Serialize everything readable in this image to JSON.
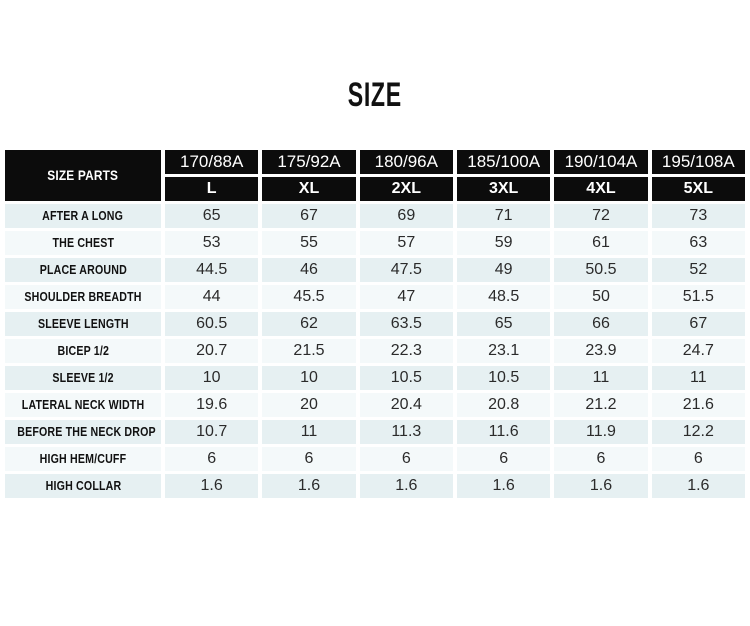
{
  "title": "SIZE",
  "chart_data": {
    "type": "table",
    "title": "SIZE",
    "corner_header": "SIZE PARTS",
    "column_groups": [
      "170/88A",
      "175/92A",
      "180/96A",
      "185/100A",
      "190/104A",
      "195/108A"
    ],
    "column_sizes": [
      "L",
      "XL",
      "2XL",
      "3XL",
      "4XL",
      "5XL"
    ],
    "rows": [
      {
        "label": "AFTER A LONG",
        "values": [
          "65",
          "67",
          "69",
          "71",
          "72",
          "73"
        ]
      },
      {
        "label": "THE CHEST",
        "values": [
          "53",
          "55",
          "57",
          "59",
          "61",
          "63"
        ]
      },
      {
        "label": "PLACE AROUND",
        "values": [
          "44.5",
          "46",
          "47.5",
          "49",
          "50.5",
          "52"
        ]
      },
      {
        "label": "SHOULDER BREADTH",
        "values": [
          "44",
          "45.5",
          "47",
          "48.5",
          "50",
          "51.5"
        ]
      },
      {
        "label": "SLEEVE LENGTH",
        "values": [
          "60.5",
          "62",
          "63.5",
          "65",
          "66",
          "67"
        ]
      },
      {
        "label": "BICEP 1/2",
        "values": [
          "20.7",
          "21.5",
          "22.3",
          "23.1",
          "23.9",
          "24.7"
        ]
      },
      {
        "label": "SLEEVE 1/2",
        "values": [
          "10",
          "10",
          "10.5",
          "10.5",
          "11",
          "11"
        ]
      },
      {
        "label": "LATERAL NECK WIDTH",
        "values": [
          "19.6",
          "20",
          "20.4",
          "20.8",
          "21.2",
          "21.6"
        ]
      },
      {
        "label": "BEFORE THE NECK DROP",
        "values": [
          "10.7",
          "11",
          "11.3",
          "11.6",
          "11.9",
          "12.2"
        ]
      },
      {
        "label": "HIGH HEM/CUFF",
        "values": [
          "6",
          "6",
          "6",
          "6",
          "6",
          "6"
        ]
      },
      {
        "label": "HIGH COLLAR",
        "values": [
          "1.6",
          "1.6",
          "1.6",
          "1.6",
          "1.6",
          "1.6"
        ]
      }
    ]
  },
  "colors": {
    "header_bg": "#0c0c0c",
    "row_odd_bg": "#e6f0f2",
    "row_even_bg": "#f4f9fa",
    "grid": "#ffffff",
    "value_text": "#2b2b2b",
    "label_text": "#111111",
    "header_text": "#ffffff"
  }
}
